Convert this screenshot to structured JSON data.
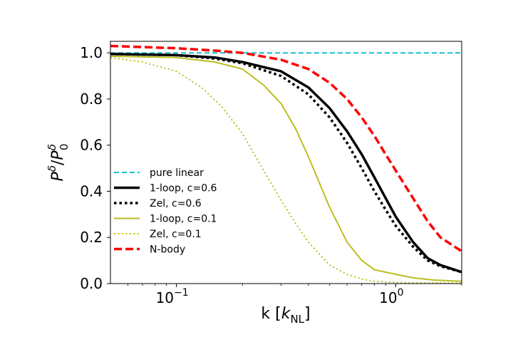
{
  "chart_data": {
    "type": "line",
    "title": "",
    "xlabel": "k [k_NL]",
    "ylabel": "P^δ/P_0^δ",
    "xscale": "log",
    "xlim": [
      0.05,
      2.0
    ],
    "ylim": [
      0.0,
      1.05
    ],
    "yticks": [
      0.0,
      0.2,
      0.4,
      0.6,
      0.8,
      1.0
    ],
    "ytick_labels": [
      "0.0",
      "0.2",
      "0.4",
      "0.6",
      "0.8",
      "1.0"
    ],
    "xtick_labels": [
      "10",
      "10"
    ],
    "xtick_exponents": [
      "−1",
      "0"
    ],
    "legend_location": "lower-left",
    "series": [
      {
        "name": "pure linear",
        "color": "#17becf",
        "style": "dashed",
        "width": "thin",
        "x": [
          0.05,
          2.0
        ],
        "y": [
          1.0,
          1.0
        ]
      },
      {
        "name": "1-loop, c=0.6",
        "color": "#000000",
        "style": "solid",
        "width": "thick",
        "x": [
          0.05,
          0.1,
          0.15,
          0.2,
          0.3,
          0.4,
          0.5,
          0.6,
          0.7,
          0.8,
          0.9,
          1.0,
          1.2,
          1.4,
          1.6,
          2.0
        ],
        "y": [
          0.995,
          0.99,
          0.98,
          0.96,
          0.92,
          0.85,
          0.76,
          0.66,
          0.56,
          0.46,
          0.37,
          0.29,
          0.18,
          0.11,
          0.08,
          0.05
        ]
      },
      {
        "name": "Zel, c=0.6",
        "color": "#000000",
        "style": "dotted",
        "width": "thick",
        "x": [
          0.05,
          0.1,
          0.15,
          0.2,
          0.3,
          0.4,
          0.5,
          0.6,
          0.7,
          0.8,
          0.9,
          1.0,
          1.2,
          1.4,
          1.6,
          2.0
        ],
        "y": [
          0.995,
          0.99,
          0.975,
          0.955,
          0.9,
          0.82,
          0.72,
          0.61,
          0.5,
          0.4,
          0.32,
          0.25,
          0.16,
          0.1,
          0.075,
          0.05
        ]
      },
      {
        "name": "1-loop, c=0.1",
        "color": "#bcbd22",
        "style": "solid",
        "width": "thin",
        "x": [
          0.05,
          0.1,
          0.15,
          0.2,
          0.25,
          0.3,
          0.35,
          0.4,
          0.5,
          0.6,
          0.7,
          0.8,
          1.0,
          1.2,
          1.5,
          2.0
        ],
        "y": [
          0.985,
          0.98,
          0.96,
          0.93,
          0.86,
          0.78,
          0.67,
          0.55,
          0.33,
          0.18,
          0.1,
          0.06,
          0.04,
          0.025,
          0.015,
          0.01
        ]
      },
      {
        "name": "Zel, c=0.1",
        "color": "#bcbd22",
        "style": "dotted",
        "width": "thin",
        "x": [
          0.05,
          0.07,
          0.1,
          0.13,
          0.16,
          0.2,
          0.25,
          0.3,
          0.35,
          0.4,
          0.5,
          0.6,
          0.7,
          0.8,
          1.0,
          1.3,
          2.0
        ],
        "y": [
          0.98,
          0.96,
          0.92,
          0.85,
          0.77,
          0.65,
          0.49,
          0.36,
          0.26,
          0.18,
          0.08,
          0.04,
          0.02,
          0.01,
          0.005,
          0.003,
          0.002
        ]
      },
      {
        "name": "N-body",
        "color": "#ff0000",
        "style": "dashed",
        "width": "thick",
        "x": [
          0.05,
          0.1,
          0.15,
          0.2,
          0.3,
          0.4,
          0.5,
          0.6,
          0.7,
          0.8,
          0.9,
          1.0,
          1.2,
          1.4,
          1.6,
          2.0
        ],
        "y": [
          1.03,
          1.02,
          1.01,
          1.0,
          0.97,
          0.93,
          0.87,
          0.8,
          0.72,
          0.64,
          0.56,
          0.49,
          0.37,
          0.27,
          0.2,
          0.14
        ]
      }
    ]
  }
}
